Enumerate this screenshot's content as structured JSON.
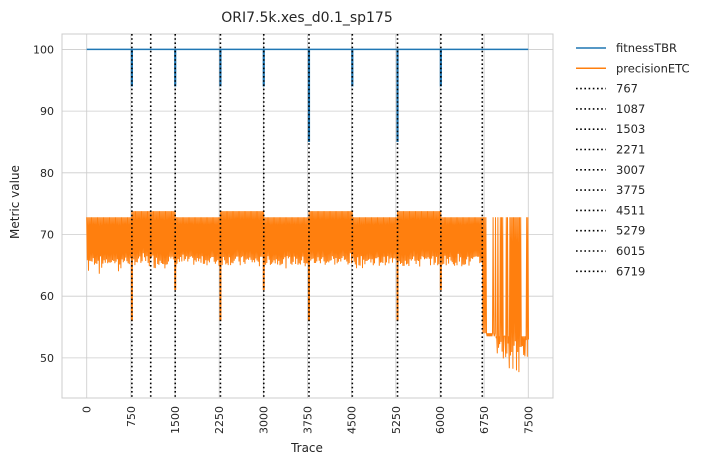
{
  "chart_data": {
    "type": "line",
    "title": "ORI7.5k.xes_d0.1_sp175",
    "xlabel": "Trace",
    "ylabel": "Metric value",
    "xlim": [
      -420,
      7920
    ],
    "ylim": [
      43.5,
      102.5
    ],
    "xticks": [
      0,
      750,
      1500,
      2250,
      3000,
      3750,
      4500,
      5250,
      6000,
      6750,
      7500
    ],
    "yticks": [
      50,
      60,
      70,
      80,
      90,
      100
    ],
    "grid": true,
    "legend_position": "outside-right",
    "series": [
      {
        "name": "fitnessTBR",
        "color": "#1f77b4",
        "baseline": 100,
        "dips": [
          {
            "x": 767,
            "min": 94
          },
          {
            "x": 1503,
            "min": 94
          },
          {
            "x": 2271,
            "min": 94
          },
          {
            "x": 3007,
            "min": 94
          },
          {
            "x": 3775,
            "min": 85
          },
          {
            "x": 4511,
            "min": 94
          },
          {
            "x": 5279,
            "min": 85
          },
          {
            "x": 6015,
            "min": 94
          }
        ],
        "x_range": [
          0,
          7500
        ]
      },
      {
        "name": "precisionETC",
        "color": "#ff7f0e",
        "segments": [
          {
            "x0": 0,
            "x1": 767,
            "top": 72.8,
            "bottom": 63.5
          },
          {
            "x0": 767,
            "x1": 1503,
            "top": 73.8,
            "bottom": 64.5
          },
          {
            "x0": 1503,
            "x1": 2271,
            "top": 72.8,
            "bottom": 64.5
          },
          {
            "x0": 2271,
            "x1": 3007,
            "top": 73.8,
            "bottom": 64.5
          },
          {
            "x0": 3007,
            "x1": 3775,
            "top": 72.8,
            "bottom": 64.5
          },
          {
            "x0": 3775,
            "x1": 4511,
            "top": 73.8,
            "bottom": 64.5
          },
          {
            "x0": 4511,
            "x1": 5279,
            "top": 72.8,
            "bottom": 64.5
          },
          {
            "x0": 5279,
            "x1": 6015,
            "top": 73.8,
            "bottom": 64.5
          },
          {
            "x0": 6015,
            "x1": 6719,
            "top": 72.8,
            "bottom": 64.5
          },
          {
            "x0": 6719,
            "x1": 7500,
            "top": 72.8,
            "bottom": 46.0
          }
        ],
        "spikes": [
          {
            "x": 767,
            "min": 56
          },
          {
            "x": 1503,
            "min": 61
          },
          {
            "x": 2271,
            "min": 56
          },
          {
            "x": 3007,
            "min": 61
          },
          {
            "x": 3775,
            "min": 56
          },
          {
            "x": 5279,
            "min": 56
          },
          {
            "x": 6015,
            "min": 61
          }
        ]
      }
    ],
    "vlines": [
      {
        "label": "767",
        "x": 767
      },
      {
        "label": "1087",
        "x": 1087
      },
      {
        "label": "1503",
        "x": 1503
      },
      {
        "label": "2271",
        "x": 2271
      },
      {
        "label": "3007",
        "x": 3007
      },
      {
        "label": "3775",
        "x": 3775
      },
      {
        "label": "4511",
        "x": 4511
      },
      {
        "label": "5279",
        "x": 5279
      },
      {
        "label": "6015",
        "x": 6015
      },
      {
        "label": "6719",
        "x": 6719
      }
    ]
  }
}
